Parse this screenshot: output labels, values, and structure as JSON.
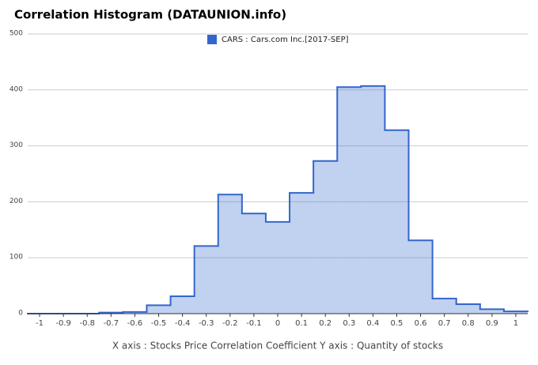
{
  "chart_data": {
    "type": "histogram",
    "title": "Correlation Histogram (DATAUNION.info)",
    "xlabel": "X axis : Stocks Price Correlation Coefficient  Y axis : Quantity of stocks",
    "bins": [
      -1.05,
      -0.95,
      -0.85,
      -0.75,
      -0.65,
      -0.55,
      -0.45,
      -0.35,
      -0.25,
      -0.15,
      -0.05,
      0.05,
      0.15,
      0.25,
      0.35,
      0.45,
      0.55,
      0.65,
      0.75,
      0.85,
      0.95,
      1.05
    ],
    "series": [
      {
        "name": "CARS : Cars.com Inc.[2017-SEP]",
        "color": "#3366cc",
        "values": [
          0,
          0,
          0,
          2,
          3,
          15,
          31,
          121,
          213,
          179,
          164,
          216,
          273,
          405,
          407,
          328,
          131,
          27,
          17,
          8,
          4
        ]
      }
    ],
    "xlim": [
      -1.05,
      1.05
    ],
    "xticks": [
      -1,
      -0.9,
      -0.8,
      -0.7,
      -0.6,
      -0.5,
      -0.4,
      -0.3,
      -0.2,
      -0.1,
      0,
      0.1,
      0.2,
      0.3,
      0.4,
      0.5,
      0.6,
      0.7,
      0.8,
      0.9,
      1
    ],
    "ylim": [
      0,
      500
    ],
    "yticks": [
      0,
      100,
      200,
      300,
      400,
      500
    ],
    "grid": true,
    "legend": "top"
  }
}
